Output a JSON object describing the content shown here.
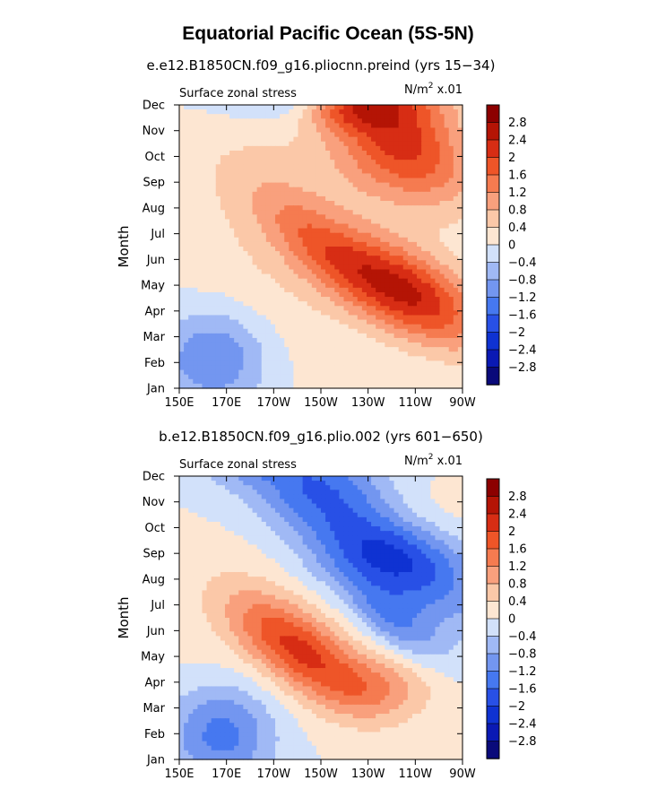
{
  "title": "Equatorial Pacific Ocean (5S-5N)",
  "colorbar": {
    "levels": [
      -2.8,
      -2.4,
      -2,
      -1.6,
      -1.2,
      -0.8,
      -0.4,
      0,
      0.4,
      0.8,
      1.2,
      1.6,
      2,
      2.4,
      2.8
    ],
    "labels": [
      "2.8",
      "2.4",
      "2",
      "1.6",
      "1.2",
      "0.8",
      "0.4",
      "0",
      "−0.4",
      "−0.8",
      "−1.2",
      "−1.6",
      "−2",
      "−2.4",
      "−2.8"
    ],
    "colors": [
      "#0a0a7a",
      "#0a19b4",
      "#0f32d2",
      "#2850e6",
      "#4678f0",
      "#7396f0",
      "#a0b9f5",
      "#d2e1fa",
      "#fde6d2",
      "#fbc8a8",
      "#f9a07d",
      "#f57b50",
      "#ee5528",
      "#d72d14",
      "#b41405",
      "#8c0000"
    ]
  },
  "chart_data": [
    {
      "type": "heatmap",
      "subtitle": "e.e12.B1850CN.f09_g16.pliocnn.preind (yrs 15−34)",
      "variable": "Surface zonal stress",
      "units_main": "N/m",
      "units_exp": "2",
      "units_scale": " x.01",
      "ylabel": "Month",
      "xticks": [
        "150E",
        "170E",
        "170W",
        "150W",
        "130W",
        "110W",
        "90W"
      ],
      "xtick_lon": [
        150,
        170,
        190,
        210,
        230,
        250,
        270
      ],
      "xlim": [
        150,
        270
      ],
      "yticks": [
        "Jan",
        "Feb",
        "Mar",
        "Apr",
        "May",
        "Jun",
        "Jul",
        "Aug",
        "Sep",
        "Oct",
        "Nov",
        "Dec"
      ],
      "blobs": [
        {
          "x": 241,
          "y": 10.3,
          "sx": 22,
          "sy": 1.7,
          "amp": 3.0,
          "rot": 0.035
        },
        {
          "x": 222,
          "y": 10.7,
          "sx": 36,
          "sy": 1.0,
          "amp": -1.2,
          "rot": 0.02
        },
        {
          "x": 248,
          "y": 3.7,
          "sx": 22,
          "sy": 1.2,
          "amp": 2.3,
          "rot": 0.04
        },
        {
          "x": 210,
          "y": 5.5,
          "sx": 20,
          "sy": 1.1,
          "amp": 1.1,
          "rot": 0.06
        },
        {
          "x": 220,
          "y": 10.7,
          "sx": 14,
          "sy": 0.6,
          "amp": 1.2,
          "rot": 0.0
        },
        {
          "x": 165,
          "y": 1.2,
          "sx": 17,
          "sy": 1.4,
          "amp": -1.3,
          "rot": 0.0
        },
        {
          "x": 178,
          "y": 11.8,
          "sx": 18,
          "sy": 0.5,
          "amp": -0.8,
          "rot": 0.0
        },
        {
          "x": 190,
          "y": 4.0,
          "sx": 30,
          "sy": 3.0,
          "amp": 0.35,
          "rot": 0.0
        },
        {
          "x": 200,
          "y": 9.2,
          "sx": 40,
          "sy": 2.2,
          "amp": 0.35,
          "rot": 0.0
        }
      ]
    },
    {
      "type": "heatmap",
      "subtitle": "b.e12.B1850CN.f09_g16.plio.002 (yrs 601−650)",
      "variable": "Surface zonal stress",
      "units_main": "N/m",
      "units_exp": "2",
      "units_scale": " x.01",
      "ylabel": "Month",
      "xticks": [
        "150E",
        "170E",
        "170W",
        "150W",
        "130W",
        "110W",
        "90W"
      ],
      "xtick_lon": [
        150,
        170,
        190,
        210,
        230,
        250,
        270
      ],
      "xlim": [
        150,
        270
      ],
      "yticks": [
        "Jan",
        "Feb",
        "Mar",
        "Apr",
        "May",
        "Jun",
        "Jul",
        "Aug",
        "Sep",
        "Oct",
        "Nov",
        "Dec"
      ],
      "blobs": [
        {
          "x": 228,
          "y": 8.8,
          "sx": 30,
          "sy": 1.6,
          "amp": -2.9,
          "rot": 0.045
        },
        {
          "x": 242,
          "y": 5.2,
          "sx": 14,
          "sy": 0.8,
          "amp": -0.9,
          "rot": 0.05
        },
        {
          "x": 200,
          "y": 4.3,
          "sx": 20,
          "sy": 1.1,
          "amp": 1.9,
          "rot": 0.05
        },
        {
          "x": 235,
          "y": 2.8,
          "sx": 16,
          "sy": 0.9,
          "amp": 0.9,
          "rot": 0.0
        },
        {
          "x": 230,
          "y": 9.3,
          "sx": 26,
          "sy": 1.0,
          "amp": 1.1,
          "rot": 0.0
        },
        {
          "x": 168,
          "y": 1.0,
          "sx": 16,
          "sy": 1.4,
          "amp": -1.4,
          "rot": 0.0
        },
        {
          "x": 178,
          "y": 11.8,
          "sx": 18,
          "sy": 0.6,
          "amp": -0.8,
          "rot": 0.0
        },
        {
          "x": 195,
          "y": 5.0,
          "sx": 40,
          "sy": 2.5,
          "amp": 0.25,
          "rot": 0.0
        }
      ]
    }
  ]
}
